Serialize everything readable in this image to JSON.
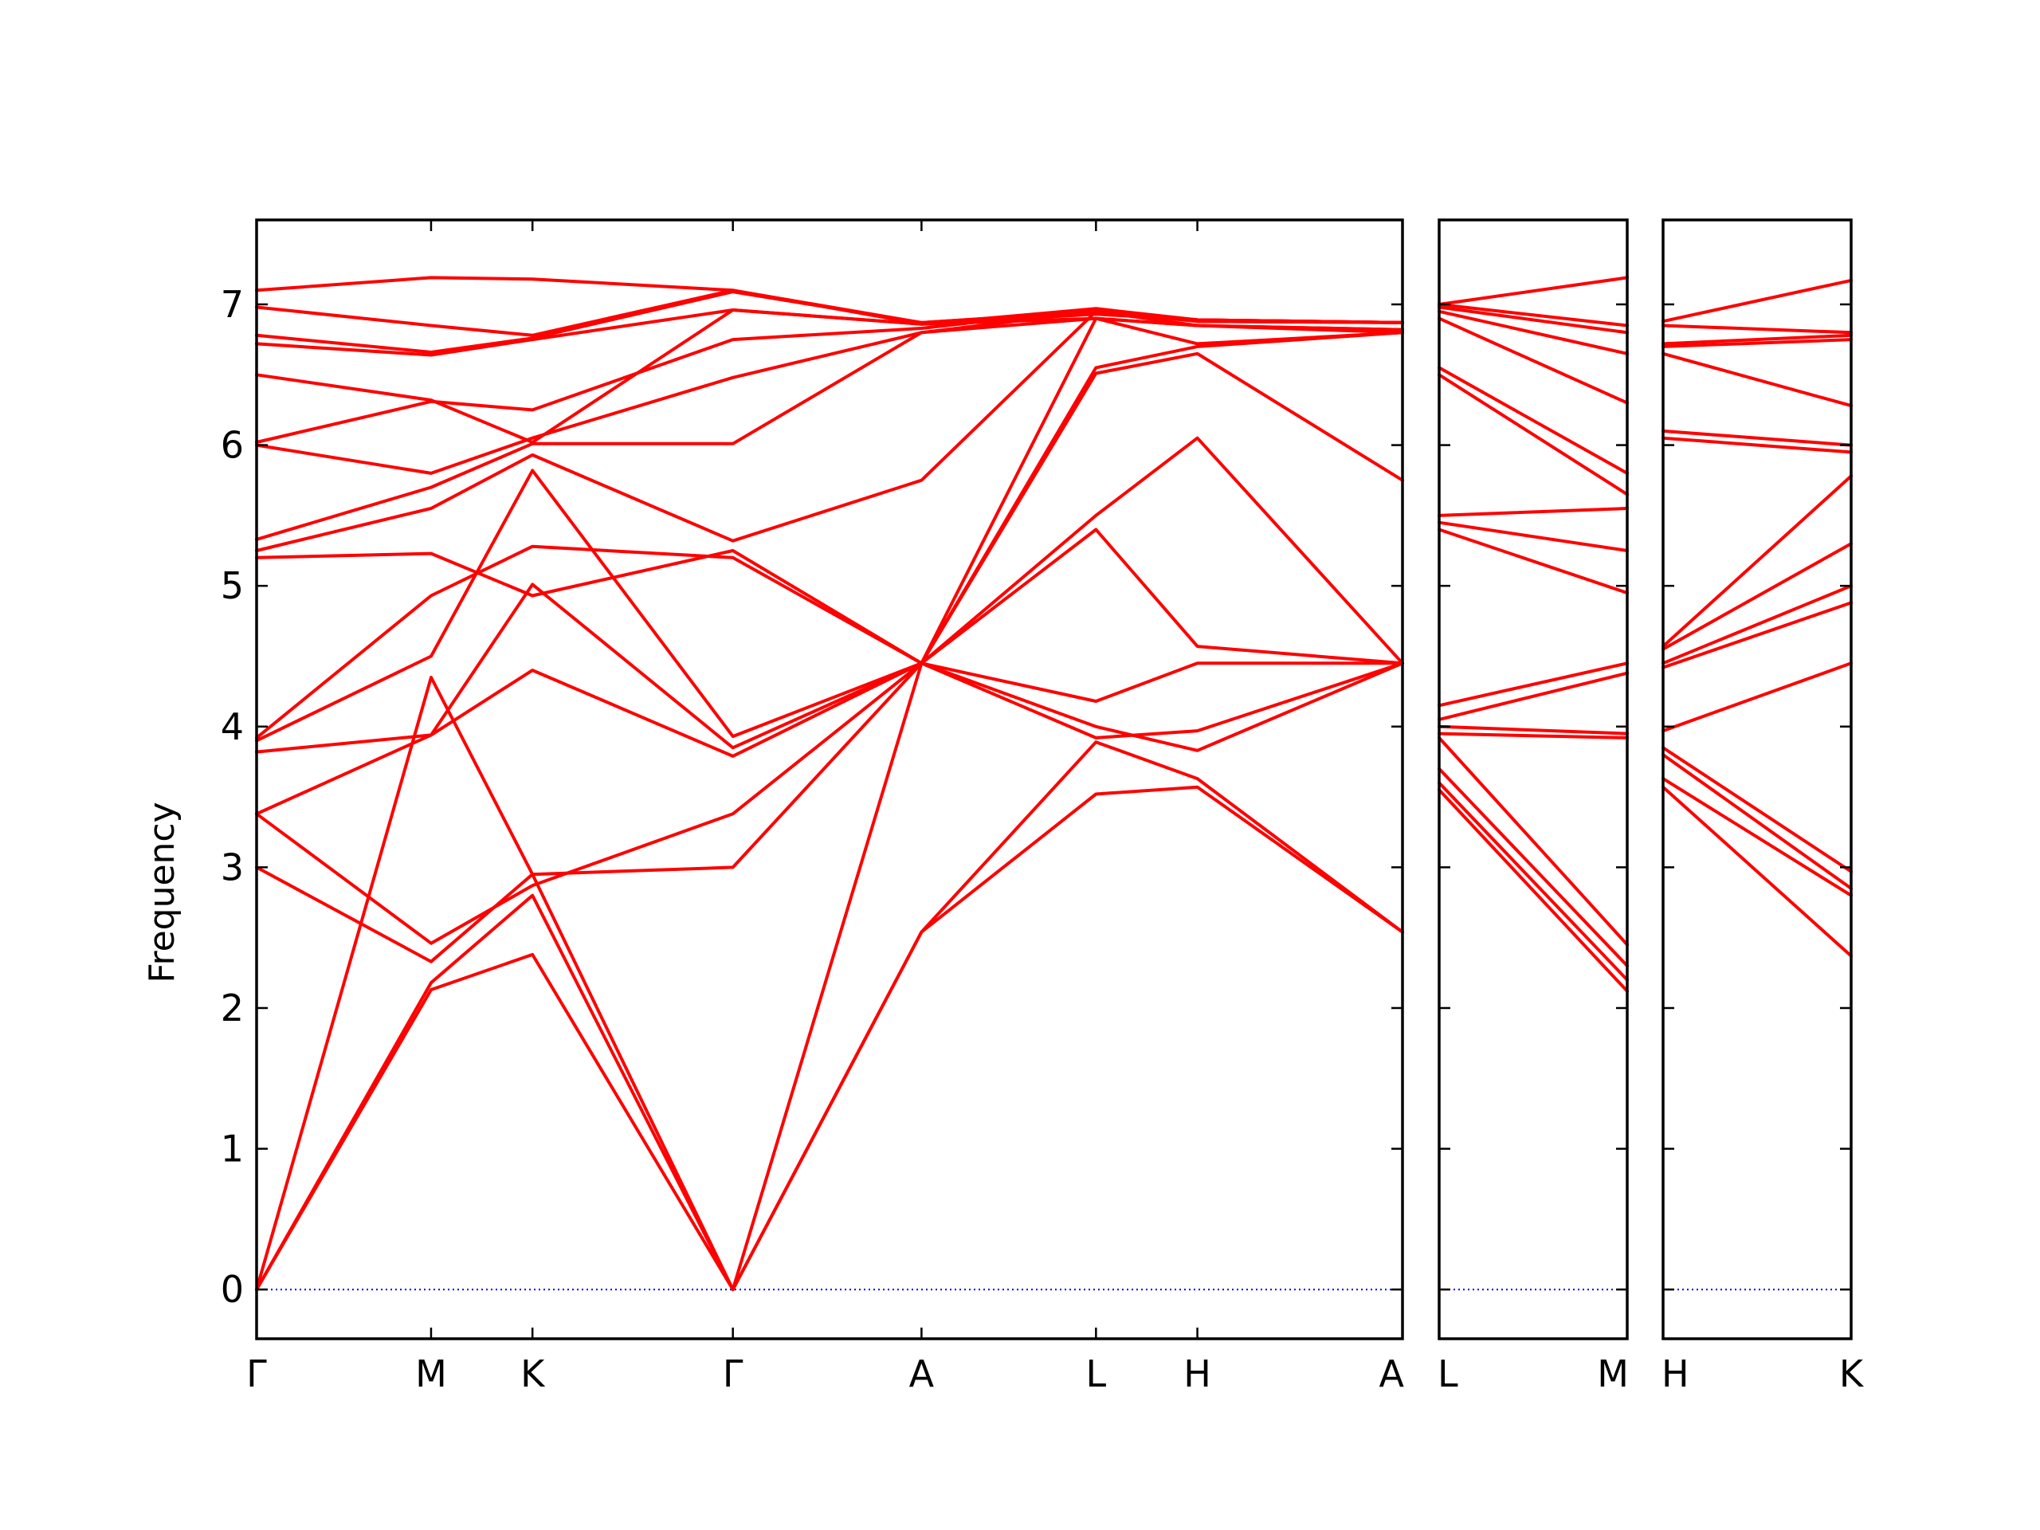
{
  "chart_data": {
    "type": "line",
    "ylabel": "Frequency",
    "ylim": [
      -0.35,
      7.6
    ],
    "yticks": [
      0,
      1,
      2,
      3,
      4,
      5,
      6,
      7
    ],
    "grid": false,
    "colors": {
      "bands": "#ff0000",
      "zero_line": "#0000ff",
      "axes": "#000000"
    },
    "panels": [
      {
        "labels": [
          "Γ",
          "M",
          "K",
          "Γ",
          "A",
          "L",
          "H",
          "A"
        ],
        "distances": [
          0,
          0.74,
          1.17,
          2.02,
          2.82,
          3.56,
          3.99,
          4.86
        ]
      },
      {
        "labels": [
          "L",
          "M"
        ],
        "distances": [
          0,
          0.8
        ]
      },
      {
        "labels": [
          "H",
          "K"
        ],
        "distances": [
          0,
          0.8
        ]
      }
    ],
    "series": [
      {
        "panel": 0,
        "y": [
          0.0,
          2.13,
          2.38,
          0.0,
          2.54,
          3.52,
          3.57,
          2.54
        ]
      },
      {
        "panel": 0,
        "y": [
          0.0,
          2.18,
          2.8,
          0.0,
          2.54,
          3.89,
          3.63,
          2.54
        ]
      },
      {
        "panel": 0,
        "y": [
          0.0,
          4.35,
          2.95,
          0.0,
          4.45,
          3.92,
          3.97,
          4.45
        ]
      },
      {
        "panel": 0,
        "y": [
          3.0,
          2.33,
          2.95,
          3.0,
          4.45,
          4.0,
          3.83,
          4.45
        ]
      },
      {
        "panel": 0,
        "y": [
          3.38,
          2.46,
          2.87,
          3.38,
          4.45,
          4.18,
          4.45,
          4.45
        ]
      },
      {
        "panel": 0,
        "y": [
          3.38,
          3.94,
          4.4,
          3.79,
          4.45,
          5.4,
          4.57,
          4.45
        ]
      },
      {
        "panel": 0,
        "y": [
          3.82,
          3.94,
          5.01,
          3.85,
          4.45,
          5.5,
          6.05,
          4.45
        ]
      },
      {
        "panel": 0,
        "y": [
          3.9,
          4.5,
          5.82,
          3.93,
          4.45,
          6.51,
          6.65,
          5.75
        ]
      },
      {
        "panel": 0,
        "y": [
          3.92,
          4.93,
          5.28,
          5.2,
          4.45,
          6.55,
          6.7,
          6.8
        ]
      },
      {
        "panel": 0,
        "y": [
          5.2,
          5.23,
          4.93,
          5.25,
          4.45,
          6.9,
          6.85,
          6.82
        ]
      },
      {
        "panel": 0,
        "y": [
          5.25,
          5.55,
          5.93,
          5.32,
          5.75,
          6.95,
          6.88,
          6.87
        ]
      },
      {
        "panel": 0,
        "y": [
          5.33,
          5.7,
          6.01,
          6.01,
          6.8,
          6.9,
          6.72,
          6.8
        ]
      },
      {
        "panel": 0,
        "y": [
          6.0,
          5.8,
          6.05,
          6.48,
          6.8,
          6.95,
          6.85,
          6.82
        ]
      },
      {
        "panel": 0,
        "y": [
          6.02,
          6.31,
          6.25,
          6.75,
          6.83,
          6.97,
          6.88,
          6.87
        ]
      },
      {
        "panel": 0,
        "y": [
          6.5,
          6.32,
          6.02,
          6.96,
          6.86,
          6.9,
          6.85,
          6.8
        ]
      },
      {
        "panel": 0,
        "y": [
          6.72,
          6.64,
          6.75,
          6.96,
          6.86,
          6.93,
          6.89,
          6.87
        ]
      },
      {
        "panel": 0,
        "y": [
          6.78,
          6.66,
          6.76,
          7.09,
          6.87,
          6.95,
          6.89,
          6.87
        ]
      },
      {
        "panel": 0,
        "y": [
          6.98,
          6.85,
          6.78,
          7.1,
          6.87,
          6.95,
          6.89,
          6.87
        ]
      },
      {
        "panel": 0,
        "y": [
          7.1,
          7.19,
          7.18,
          7.1,
          6.86,
          6.97,
          6.89,
          6.87
        ]
      },
      {
        "panel": 1,
        "y": [
          3.55,
          2.12
        ]
      },
      {
        "panel": 1,
        "y": [
          3.6,
          2.2
        ]
      },
      {
        "panel": 1,
        "y": [
          3.7,
          2.3
        ]
      },
      {
        "panel": 1,
        "y": [
          3.92,
          2.45
        ]
      },
      {
        "panel": 1,
        "y": [
          3.95,
          3.92
        ]
      },
      {
        "panel": 1,
        "y": [
          4.0,
          3.95
        ]
      },
      {
        "panel": 1,
        "y": [
          4.05,
          4.38
        ]
      },
      {
        "panel": 1,
        "y": [
          4.15,
          4.45
        ]
      },
      {
        "panel": 1,
        "y": [
          5.4,
          4.95
        ]
      },
      {
        "panel": 1,
        "y": [
          5.45,
          5.25
        ]
      },
      {
        "panel": 1,
        "y": [
          5.5,
          5.55
        ]
      },
      {
        "panel": 1,
        "y": [
          6.5,
          5.65
        ]
      },
      {
        "panel": 1,
        "y": [
          6.55,
          5.8
        ]
      },
      {
        "panel": 1,
        "y": [
          6.9,
          6.3
        ]
      },
      {
        "panel": 1,
        "y": [
          6.95,
          6.65
        ]
      },
      {
        "panel": 1,
        "y": [
          6.98,
          6.8
        ]
      },
      {
        "panel": 1,
        "y": [
          7.0,
          6.85
        ]
      },
      {
        "panel": 1,
        "y": [
          7.0,
          7.19
        ]
      },
      {
        "panel": 2,
        "y": [
          3.57,
          2.37
        ]
      },
      {
        "panel": 2,
        "y": [
          3.63,
          2.8
        ]
      },
      {
        "panel": 2,
        "y": [
          3.8,
          2.85
        ]
      },
      {
        "panel": 2,
        "y": [
          3.85,
          2.97
        ]
      },
      {
        "panel": 2,
        "y": [
          3.97,
          4.45
        ]
      },
      {
        "panel": 2,
        "y": [
          4.42,
          4.88
        ]
      },
      {
        "panel": 2,
        "y": [
          4.45,
          5.0
        ]
      },
      {
        "panel": 2,
        "y": [
          4.55,
          5.3
        ]
      },
      {
        "panel": 2,
        "y": [
          4.57,
          5.78
        ]
      },
      {
        "panel": 2,
        "y": [
          6.05,
          5.95
        ]
      },
      {
        "panel": 2,
        "y": [
          6.1,
          6.0
        ]
      },
      {
        "panel": 2,
        "y": [
          6.65,
          6.28
        ]
      },
      {
        "panel": 2,
        "y": [
          6.7,
          6.75
        ]
      },
      {
        "panel": 2,
        "y": [
          6.72,
          6.78
        ]
      },
      {
        "panel": 2,
        "y": [
          6.85,
          6.8
        ]
      },
      {
        "panel": 2,
        "y": [
          6.88,
          7.17
        ]
      }
    ]
  }
}
